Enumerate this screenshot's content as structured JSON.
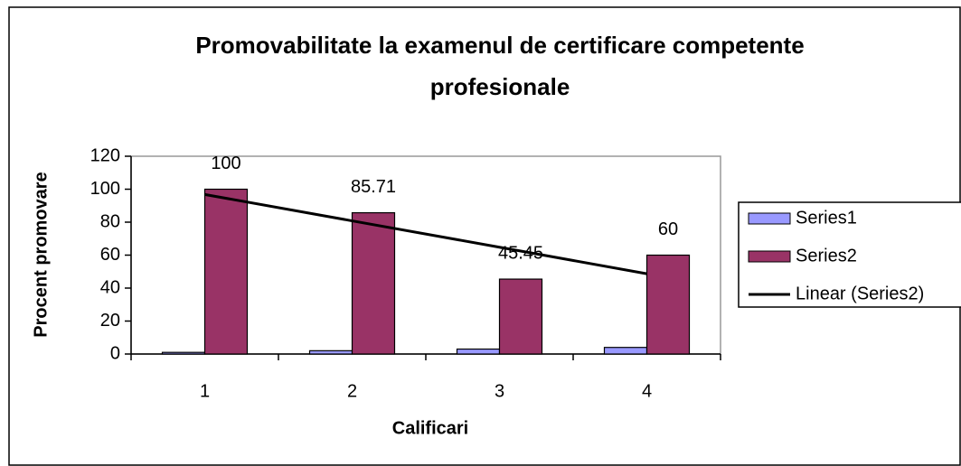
{
  "chart_data": {
    "type": "bar",
    "title": "Promovabilitate la examenul de certificare competente profesionale",
    "x_label": "Calificari",
    "y_label": "Procent promovare",
    "categories": [
      "1",
      "2",
      "3",
      "4"
    ],
    "series": [
      {
        "name": "Series1",
        "color": "#9999ff",
        "values": [
          1,
          2,
          3,
          4
        ]
      },
      {
        "name": "Series2",
        "color": "#993366",
        "values": [
          100,
          85.71,
          45.45,
          60
        ],
        "data_labels": true
      },
      {
        "name": "Linear (Series2)",
        "color": "#000000",
        "kind": "line",
        "values": [
          96.8,
          80.8,
          64.8,
          48.7
        ]
      }
    ],
    "ylim": [
      0,
      120
    ],
    "yticks": [
      0,
      20,
      40,
      60,
      80,
      100,
      120
    ],
    "grid": false,
    "legend": "right"
  }
}
